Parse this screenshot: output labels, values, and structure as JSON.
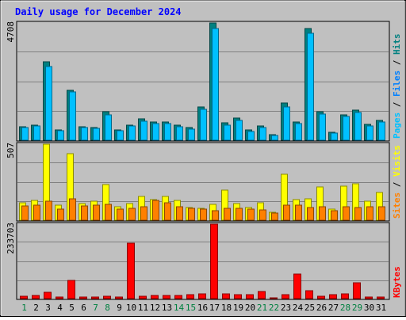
{
  "chart_data": [
    {
      "type": "bar",
      "title": "Daily usage for December 2024",
      "categories": [
        "1",
        "2",
        "3",
        "4",
        "5",
        "6",
        "7",
        "8",
        "9",
        "10",
        "11",
        "12",
        "13",
        "14",
        "15",
        "16",
        "17",
        "18",
        "19",
        "20",
        "21",
        "22",
        "23",
        "24",
        "25",
        "26",
        "27",
        "28",
        "29",
        "30",
        "31"
      ],
      "weekend_days": [
        "1",
        "7",
        "8",
        "14",
        "15",
        "21",
        "22",
        "28",
        "29"
      ],
      "ylabel_max": "4708",
      "ylim": [
        0,
        4708
      ],
      "legend": [
        "Pages",
        "Files",
        "Hits"
      ],
      "series": [
        {
          "name": "Hits",
          "color": "#008080",
          "values": [
            540,
            600,
            3150,
            420,
            2010,
            530,
            510,
            1130,
            420,
            610,
            850,
            730,
            720,
            590,
            500,
            1340,
            4708,
            700,
            900,
            400,
            580,
            210,
            1480,
            740,
            4500,
            1150,
            320,
            1020,
            1200,
            630,
            800
          ]
        },
        {
          "name": "Files",
          "color": "#00c0ff",
          "values": [
            500,
            560,
            2950,
            380,
            1950,
            500,
            470,
            1030,
            390,
            570,
            760,
            680,
            660,
            540,
            460,
            1230,
            4500,
            620,
            810,
            360,
            520,
            180,
            1340,
            660,
            4300,
            1050,
            290,
            950,
            1100,
            570,
            740
          ]
        },
        {
          "name": "Pages",
          "color": "#00c0ff",
          "values": [
            0,
            0,
            0,
            0,
            0,
            0,
            0,
            0,
            0,
            0,
            0,
            0,
            0,
            0,
            0,
            0,
            0,
            0,
            0,
            0,
            0,
            0,
            0,
            0,
            0,
            0,
            0,
            0,
            0,
            0,
            0
          ]
        }
      ]
    },
    {
      "type": "bar",
      "ylabel_max": "507",
      "ylim": [
        0,
        507
      ],
      "legend": [
        "Sites",
        "Visits"
      ],
      "series": [
        {
          "name": "Visits",
          "color": "#ffff00",
          "values": [
            115,
            130,
            507,
            100,
            445,
            110,
            125,
            240,
            90,
            110,
            160,
            135,
            160,
            130,
            85,
            80,
            105,
            200,
            110,
            85,
            115,
            55,
            305,
            135,
            140,
            220,
            75,
            225,
            245,
            125,
            185
          ]
        },
        {
          "name": "Sites",
          "color": "#ff8000",
          "values": [
            95,
            100,
            125,
            75,
            140,
            95,
            100,
            105,
            75,
            80,
            90,
            130,
            115,
            90,
            80,
            75,
            65,
            80,
            80,
            75,
            70,
            45,
            100,
            100,
            85,
            90,
            65,
            90,
            85,
            90,
            90
          ]
        }
      ]
    },
    {
      "type": "bar",
      "ylabel_max": "233703",
      "ylim": [
        0,
        233703
      ],
      "legend": [
        "KBytes"
      ],
      "series": [
        {
          "name": "KBytes",
          "color": "#ff0000",
          "values": [
            8000,
            10000,
            20000,
            4000,
            56000,
            5000,
            4500,
            8500,
            6000,
            173000,
            8000,
            9000,
            10000,
            11000,
            12000,
            14000,
            233703,
            14000,
            13000,
            12000,
            22000,
            3000,
            12000,
            76000,
            26000,
            8000,
            12000,
            14000,
            49000,
            4000,
            6000
          ]
        }
      ]
    }
  ]
}
